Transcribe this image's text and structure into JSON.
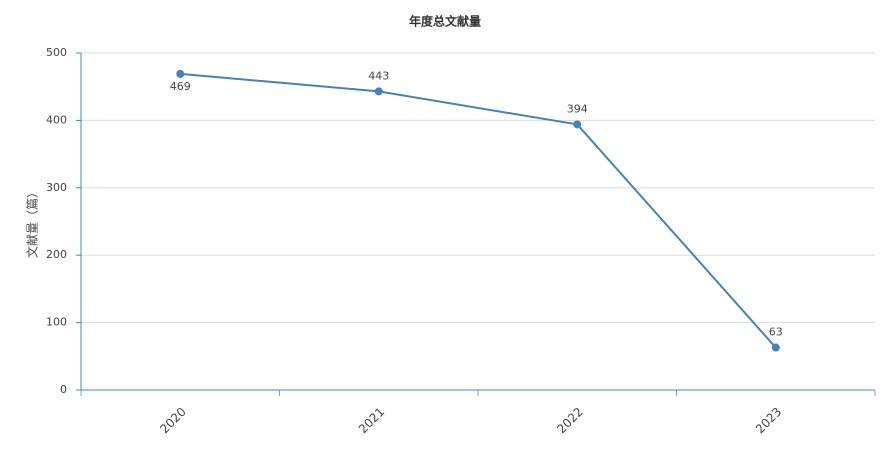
{
  "chart_data": {
    "type": "line",
    "title": "年度总文献量",
    "y_label": "文献量（篇）",
    "categories": [
      "2020",
      "2021",
      "2022",
      "2023"
    ],
    "series": [
      {
        "color": "#4682b4",
        "values": [
          469,
          443,
          394,
          63
        ]
      }
    ],
    "ylim": [
      0,
      500
    ],
    "yticks": [
      0,
      100,
      200,
      300,
      400,
      500
    ],
    "grid": true
  }
}
